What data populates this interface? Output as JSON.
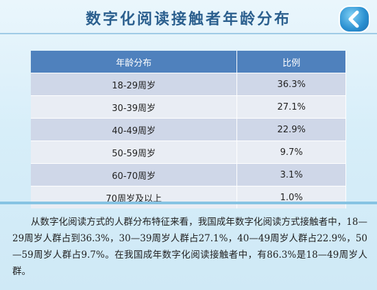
{
  "title": "数字化阅读接触者年龄分布",
  "table": {
    "headers": [
      "年龄分布",
      "比例"
    ],
    "rows": [
      {
        "age": "18-29周岁",
        "ratio": "36.3%"
      },
      {
        "age": "30-39周岁",
        "ratio": "27.1%"
      },
      {
        "age": "40-49周岁",
        "ratio": "22.9%"
      },
      {
        "age": "50-59周岁",
        "ratio": "9.7%"
      },
      {
        "age": "60-70周岁",
        "ratio": "3.1%"
      },
      {
        "age": "70周岁及以上",
        "ratio": "1.0%"
      }
    ]
  },
  "paragraph": "从数字化阅读方式的人群分布特征来看，我国成年数字化阅读方式接触者中，18—29周岁人群占到36.3%，30—39周岁人群占27.1%，40—49周岁人群占22.9%，50—59周岁人群占9.7%。在我国成年数字化阅读接触者中，有86.3%是18—49周岁人群。",
  "icons": {
    "back": "back-arrow-icon"
  },
  "colors": {
    "header": "#4f81bd",
    "title": "#2b5f8e",
    "button": "#2a8fd0"
  }
}
